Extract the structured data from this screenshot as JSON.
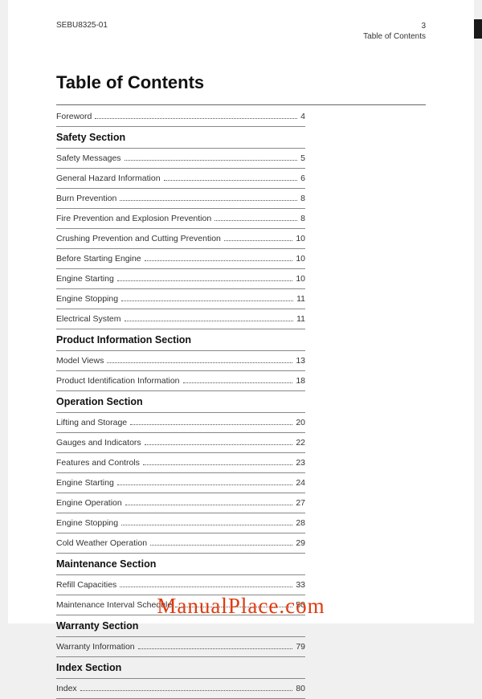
{
  "header": {
    "doc_id": "SEBU8325-01",
    "page_number": "3",
    "section_label": "Table of Contents"
  },
  "title": "Table of Contents",
  "top_entry": {
    "label": "Foreword",
    "page": "4"
  },
  "sections": [
    {
      "heading": "Safety Section",
      "entries": [
        {
          "label": "Safety Messages",
          "page": "5"
        },
        {
          "label": "General Hazard Information",
          "page": "6"
        },
        {
          "label": "Burn Prevention",
          "page": "8"
        },
        {
          "label": "Fire Prevention and Explosion Prevention",
          "page": "8"
        },
        {
          "label": "Crushing Prevention and Cutting Prevention",
          "page": "10"
        },
        {
          "label": "Before Starting Engine",
          "page": "10"
        },
        {
          "label": "Engine Starting",
          "page": "10"
        },
        {
          "label": "Engine Stopping",
          "page": "11"
        },
        {
          "label": "Electrical System",
          "page": "11"
        }
      ]
    },
    {
      "heading": "Product Information Section",
      "entries": [
        {
          "label": "Model Views",
          "page": "13"
        },
        {
          "label": "Product Identification Information",
          "page": "18"
        }
      ]
    },
    {
      "heading": "Operation Section",
      "entries": [
        {
          "label": "Lifting and Storage",
          "page": "20"
        },
        {
          "label": "Gauges and Indicators",
          "page": "22"
        },
        {
          "label": "Features and Controls",
          "page": "23"
        },
        {
          "label": "Engine Starting",
          "page": "24"
        },
        {
          "label": "Engine Operation",
          "page": "27"
        },
        {
          "label": "Engine Stopping",
          "page": "28"
        },
        {
          "label": "Cold Weather Operation",
          "page": "29"
        }
      ]
    },
    {
      "heading": "Maintenance Section",
      "entries": [
        {
          "label": "Refill Capacities",
          "page": "33"
        },
        {
          "label": "Maintenance Interval Schedule",
          "page": "50"
        }
      ]
    },
    {
      "heading": "Warranty Section",
      "entries": [
        {
          "label": "Warranty Information",
          "page": "79"
        }
      ]
    },
    {
      "heading": "Index Section",
      "entries": [
        {
          "label": "Index",
          "page": "80"
        }
      ]
    }
  ],
  "watermark": "ManualPlace.com",
  "colors": {
    "page_bg": "#ffffff",
    "outer_bg": "#f0f0f0",
    "text": "#222222",
    "rule": "#666666",
    "watermark": "#e03a0e",
    "tab": "#1a1a1a"
  }
}
